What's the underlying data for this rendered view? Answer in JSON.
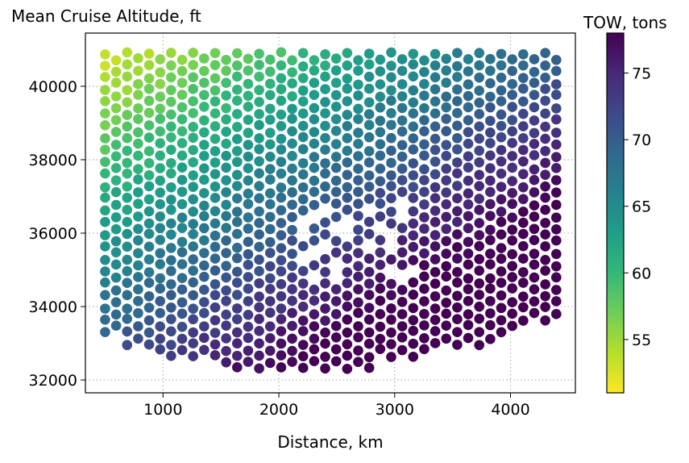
{
  "chart_data": {
    "type": "scatter",
    "title": "Mean Cruise Altitude, ft",
    "xlabel": "Distance, km",
    "ylabel": "",
    "xlim": [
      330,
      4560
    ],
    "ylim": [
      31650,
      41450
    ],
    "x_ticks": [
      1000,
      2000,
      3000,
      4000
    ],
    "y_ticks": [
      32000,
      34000,
      36000,
      38000,
      40000
    ],
    "grid": true,
    "grid_style": "dotted",
    "colormap": "viridis",
    "colorbar": {
      "label": "TOW, tons",
      "range": [
        51,
        78
      ],
      "ticks": [
        55,
        60,
        65,
        70,
        75
      ],
      "stops": [
        "#fde725",
        "#b5de2b",
        "#6ece58",
        "#35b779",
        "#1f9e89",
        "#26828e",
        "#31688e",
        "#3e4989",
        "#482878",
        "#440154"
      ]
    },
    "point_grid": {
      "x_start": 500,
      "x_step": 95,
      "columns": 42,
      "alt_top": 40900,
      "alt_step": 330,
      "bottom_boundary": [
        [
          500,
          33200
        ],
        [
          700,
          32900
        ],
        [
          900,
          32700
        ],
        [
          1200,
          32500
        ],
        [
          1500,
          32300
        ],
        [
          1800,
          32100
        ],
        [
          2000,
          32150
        ],
        [
          2200,
          32300
        ],
        [
          2500,
          32300
        ],
        [
          2800,
          32250
        ],
        [
          2900,
          32400
        ],
        [
          3000,
          32450
        ],
        [
          3200,
          32600
        ],
        [
          3400,
          32700
        ],
        [
          3600,
          32750
        ],
        [
          3800,
          32900
        ],
        [
          4000,
          33200
        ],
        [
          4400,
          33600
        ]
      ],
      "tow_model": {
        "base": 52.5,
        "per_km": 0.0043,
        "per_kft_below_top": 2.2
      }
    },
    "gap_region": {
      "description": "sparse points",
      "x_range": [
        2200,
        3200
      ],
      "alt_range": [
        34800,
        36800
      ]
    }
  }
}
